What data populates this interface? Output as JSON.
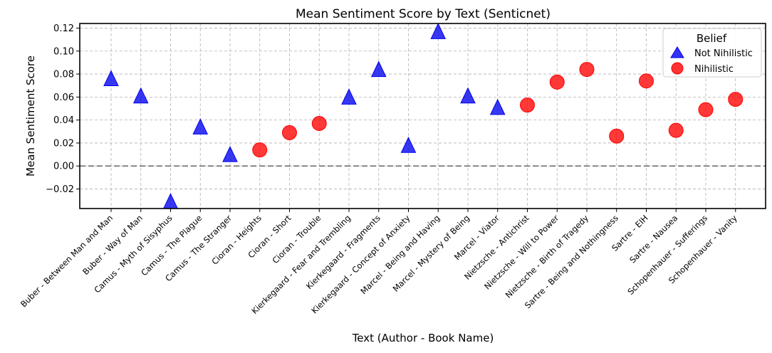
{
  "chart_data": {
    "type": "scatter",
    "title": "Mean Sentiment Score by Text (Senticnet)",
    "xlabel": "Text (Author - Book Name)",
    "ylabel": "Mean Sentiment Score",
    "ylim": [
      -0.037,
      0.124
    ],
    "yticks": [
      "−0.02",
      "0.00",
      "0.02",
      "0.04",
      "0.06",
      "0.08",
      "0.10",
      "0.12"
    ],
    "ytick_values": [
      -0.02,
      0.0,
      0.02,
      0.04,
      0.06,
      0.08,
      0.1,
      0.12
    ],
    "grid": true,
    "reference_line": 0.0,
    "legend": {
      "title": "Belief",
      "placement": "top-right"
    },
    "categories": [
      "Buber - Between Man and Man",
      "Buber - Way of Man",
      "Camus - Myth of Sisyphus",
      "Camus - The Plague",
      "Camus - The Stranger",
      "Cioran - Heights",
      "Cioran - Short",
      "Cioran - Trouble",
      "Kierkegaard - Fear and Trembling",
      "Kierkegaard - Fragments",
      "Kierkegaard - Concept of Anxiety",
      "Marcel - Being and Having",
      "Marcel - Mystery of Being",
      "Marcel - Viator",
      "Nietzsche - Antichrist",
      "Nietzsche - Will to Power",
      "Nietzsche - Birth of Tragedy",
      "Sartre - Being and Nothingness",
      "Sartre - EIH",
      "Sartre - Nausea",
      "Schopenhauer - Sufferings",
      "Schopenhauer - Vanity"
    ],
    "series": [
      {
        "name": "Not Nihilistic",
        "marker": "triangle",
        "color": "#0000ee",
        "points": [
          {
            "x": "Buber - Between Man and Man",
            "y": 0.075
          },
          {
            "x": "Buber - Way of Man",
            "y": 0.06
          },
          {
            "x": "Camus - Myth of Sisyphus",
            "y": -0.032
          },
          {
            "x": "Camus - The Plague",
            "y": 0.033
          },
          {
            "x": "Camus - The Stranger",
            "y": 0.009
          },
          {
            "x": "Kierkegaard - Fear and Trembling",
            "y": 0.059
          },
          {
            "x": "Kierkegaard - Fragments",
            "y": 0.083
          },
          {
            "x": "Kierkegaard - Concept of Anxiety",
            "y": 0.017
          },
          {
            "x": "Marcel - Being and Having",
            "y": 0.116
          },
          {
            "x": "Marcel - Mystery of Being",
            "y": 0.06
          },
          {
            "x": "Marcel - Viator",
            "y": 0.05
          }
        ]
      },
      {
        "name": "Nihilistic",
        "marker": "circle",
        "color": "#ff0000",
        "points": [
          {
            "x": "Cioran - Heights",
            "y": 0.014
          },
          {
            "x": "Cioran - Short",
            "y": 0.029
          },
          {
            "x": "Cioran - Trouble",
            "y": 0.037
          },
          {
            "x": "Nietzsche - Antichrist",
            "y": 0.053
          },
          {
            "x": "Nietzsche - Will to Power",
            "y": 0.073
          },
          {
            "x": "Nietzsche - Birth of Tragedy",
            "y": 0.084
          },
          {
            "x": "Sartre - Being and Nothingness",
            "y": 0.026
          },
          {
            "x": "Sartre - EIH",
            "y": 0.074
          },
          {
            "x": "Sartre - Nausea",
            "y": 0.031
          },
          {
            "x": "Schopenhauer - Sufferings",
            "y": 0.049
          },
          {
            "x": "Schopenhauer - Vanity",
            "y": 0.058
          }
        ]
      }
    ]
  }
}
